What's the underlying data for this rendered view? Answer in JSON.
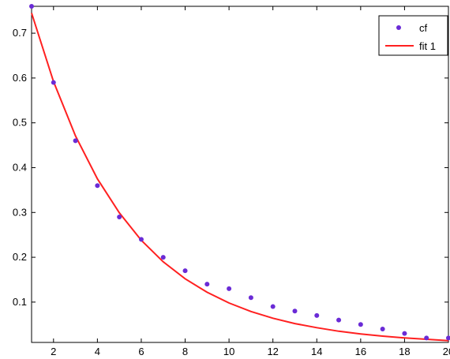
{
  "chart_data": {
    "type": "scatter",
    "title": "",
    "xlabel": "",
    "ylabel": "",
    "xlim": [
      1,
      20
    ],
    "ylim": [
      0.01,
      0.76
    ],
    "xticks": [
      2,
      4,
      6,
      8,
      10,
      12,
      14,
      16,
      18,
      20
    ],
    "xtick_labels": [
      "2",
      "4",
      "6",
      "8",
      "10",
      "12",
      "14",
      "16",
      "18",
      "20"
    ],
    "yticks": [
      0.1,
      0.2,
      0.3,
      0.4,
      0.5,
      0.6,
      0.7
    ],
    "ytick_labels": [
      "0.1",
      "0.2",
      "0.3",
      "0.4",
      "0.5",
      "0.6",
      "0.7"
    ],
    "grid": false,
    "legend": {
      "position": "top-right",
      "entries": [
        "cf",
        "fit 1"
      ]
    },
    "series": [
      {
        "name": "cf",
        "kind": "scatter",
        "color": "#6a2bd6",
        "x": [
          1,
          2,
          3,
          4,
          5,
          6,
          7,
          8,
          9,
          10,
          11,
          12,
          13,
          14,
          15,
          16,
          17,
          18,
          19,
          20
        ],
        "y": [
          0.76,
          0.59,
          0.46,
          0.36,
          0.29,
          0.24,
          0.2,
          0.17,
          0.14,
          0.13,
          0.11,
          0.09,
          0.08,
          0.07,
          0.06,
          0.05,
          0.04,
          0.03,
          0.02,
          0.02
        ]
      },
      {
        "name": "fit 1",
        "kind": "line",
        "color": "#ff2020",
        "x": [
          1,
          2,
          3,
          4,
          5,
          6,
          7,
          8,
          9,
          10,
          11,
          12,
          13,
          14,
          15,
          16,
          17,
          18,
          19,
          20
        ],
        "y": [
          0.745,
          0.592,
          0.471,
          0.375,
          0.299,
          0.238,
          0.19,
          0.152,
          0.122,
          0.098,
          0.079,
          0.064,
          0.052,
          0.043,
          0.035,
          0.029,
          0.024,
          0.02,
          0.017,
          0.014
        ]
      }
    ]
  }
}
